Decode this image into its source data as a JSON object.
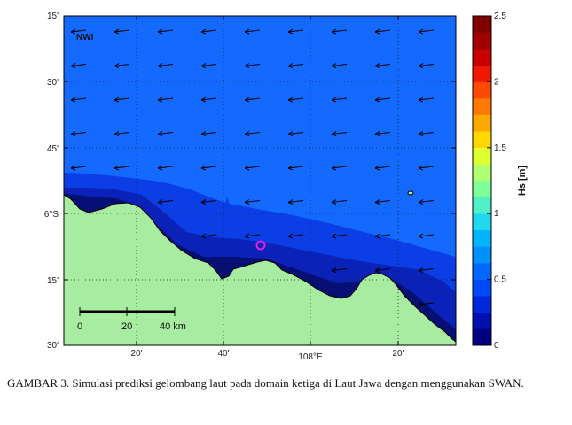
{
  "map": {
    "region_label": "NWI",
    "lat_ticks": [
      "15'",
      "30'",
      "45'",
      "6°S",
      "15'",
      "30'"
    ],
    "lon_ticks": [
      "20'",
      "40'",
      "108°E",
      "20'"
    ],
    "scale_bar": {
      "labels": [
        "0",
        "20",
        "40 km"
      ]
    },
    "colors": {
      "land": "#a8eca2",
      "deep_sea": "#1469ff",
      "mid_sea": "#0b3ee4",
      "shallow_sea": "#0a22b8",
      "near_shore": "#050f74",
      "arrow": "#000000",
      "station_marker": "#e81ee8"
    },
    "station_marker": "o"
  },
  "colorbar": {
    "label": "Hs [m]",
    "ticks": [
      "0",
      "0.5",
      "1",
      "1.5",
      "2",
      "2.5"
    ],
    "range": [
      0,
      2.5
    ],
    "colors": [
      "#000080",
      "#0010b0",
      "#0028d8",
      "#0048f8",
      "#0068ff",
      "#0090ff",
      "#00b4ff",
      "#20d8f0",
      "#50f0c8",
      "#80ff98",
      "#b0ff70",
      "#e0ff30",
      "#ffd800",
      "#ffa800",
      "#ff7800",
      "#ff4800",
      "#f01800",
      "#c80000",
      "#a00000",
      "#800000"
    ]
  },
  "caption": {
    "text": "GAMBAR 3. Simulasi prediksi gelombang laut pada domain ketiga di Laut Jawa dengan menggunakan SWAN."
  }
}
